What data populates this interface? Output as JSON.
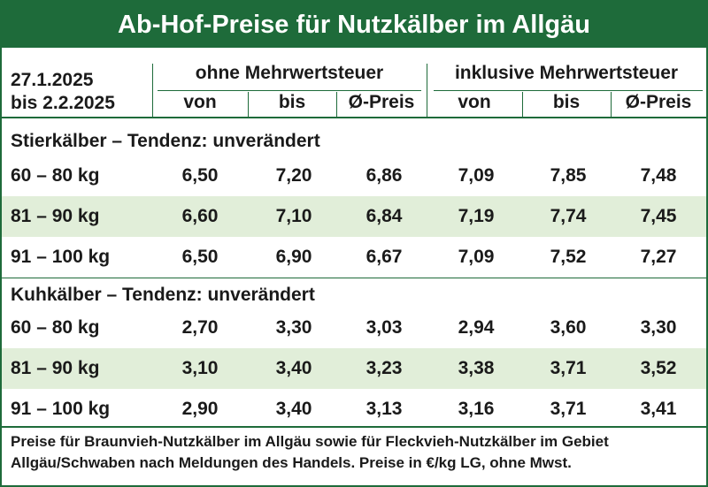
{
  "title": "Ab-Hof-Preise für Nutzkälber im Allgäu",
  "period": {
    "from": "27.1.2025",
    "to": "bis 2.2.2025"
  },
  "groups": {
    "without_vat": "ohne Mehrwertsteuer",
    "with_vat": "inklusive Mehrwertsteuer"
  },
  "columns": [
    "von",
    "bis",
    "Ø-Preis",
    "von",
    "bis",
    "Ø-Preis"
  ],
  "sections": [
    {
      "title": "Stierkälber – Tendenz: unverändert",
      "rows": [
        {
          "label": "60 – 80 kg",
          "values": [
            "6,50",
            "7,20",
            "6,86",
            "7,09",
            "7,85",
            "7,48"
          ]
        },
        {
          "label": "81 – 90 kg",
          "values": [
            "6,60",
            "7,10",
            "6,84",
            "7,19",
            "7,74",
            "7,45"
          ]
        },
        {
          "label": "91 – 100 kg",
          "values": [
            "6,50",
            "6,90",
            "6,67",
            "7,09",
            "7,52",
            "7,27"
          ]
        }
      ]
    },
    {
      "title": "Kuhkälber – Tendenz: unverändert",
      "rows": [
        {
          "label": "60 – 80 kg",
          "values": [
            "2,70",
            "3,30",
            "3,03",
            "2,94",
            "3,60",
            "3,30"
          ]
        },
        {
          "label": "81 – 90 kg",
          "values": [
            "3,10",
            "3,40",
            "3,23",
            "3,38",
            "3,71",
            "3,52"
          ]
        },
        {
          "label": "91 – 100 kg",
          "values": [
            "2,90",
            "3,40",
            "3,13",
            "3,16",
            "3,71",
            "3,41"
          ]
        }
      ]
    }
  ],
  "footnote": "Preise für Braunvieh-Nutzkälber im Allgäu sowie für Fleckvieh-Nutzkälber im Gebiet Allgäu/Schwaben nach Meldungen des Handels. Preise in €/kg LG, ohne Mwst.",
  "colors": {
    "accent": "#1e6b3a",
    "row_shade": "#e1eed9"
  }
}
